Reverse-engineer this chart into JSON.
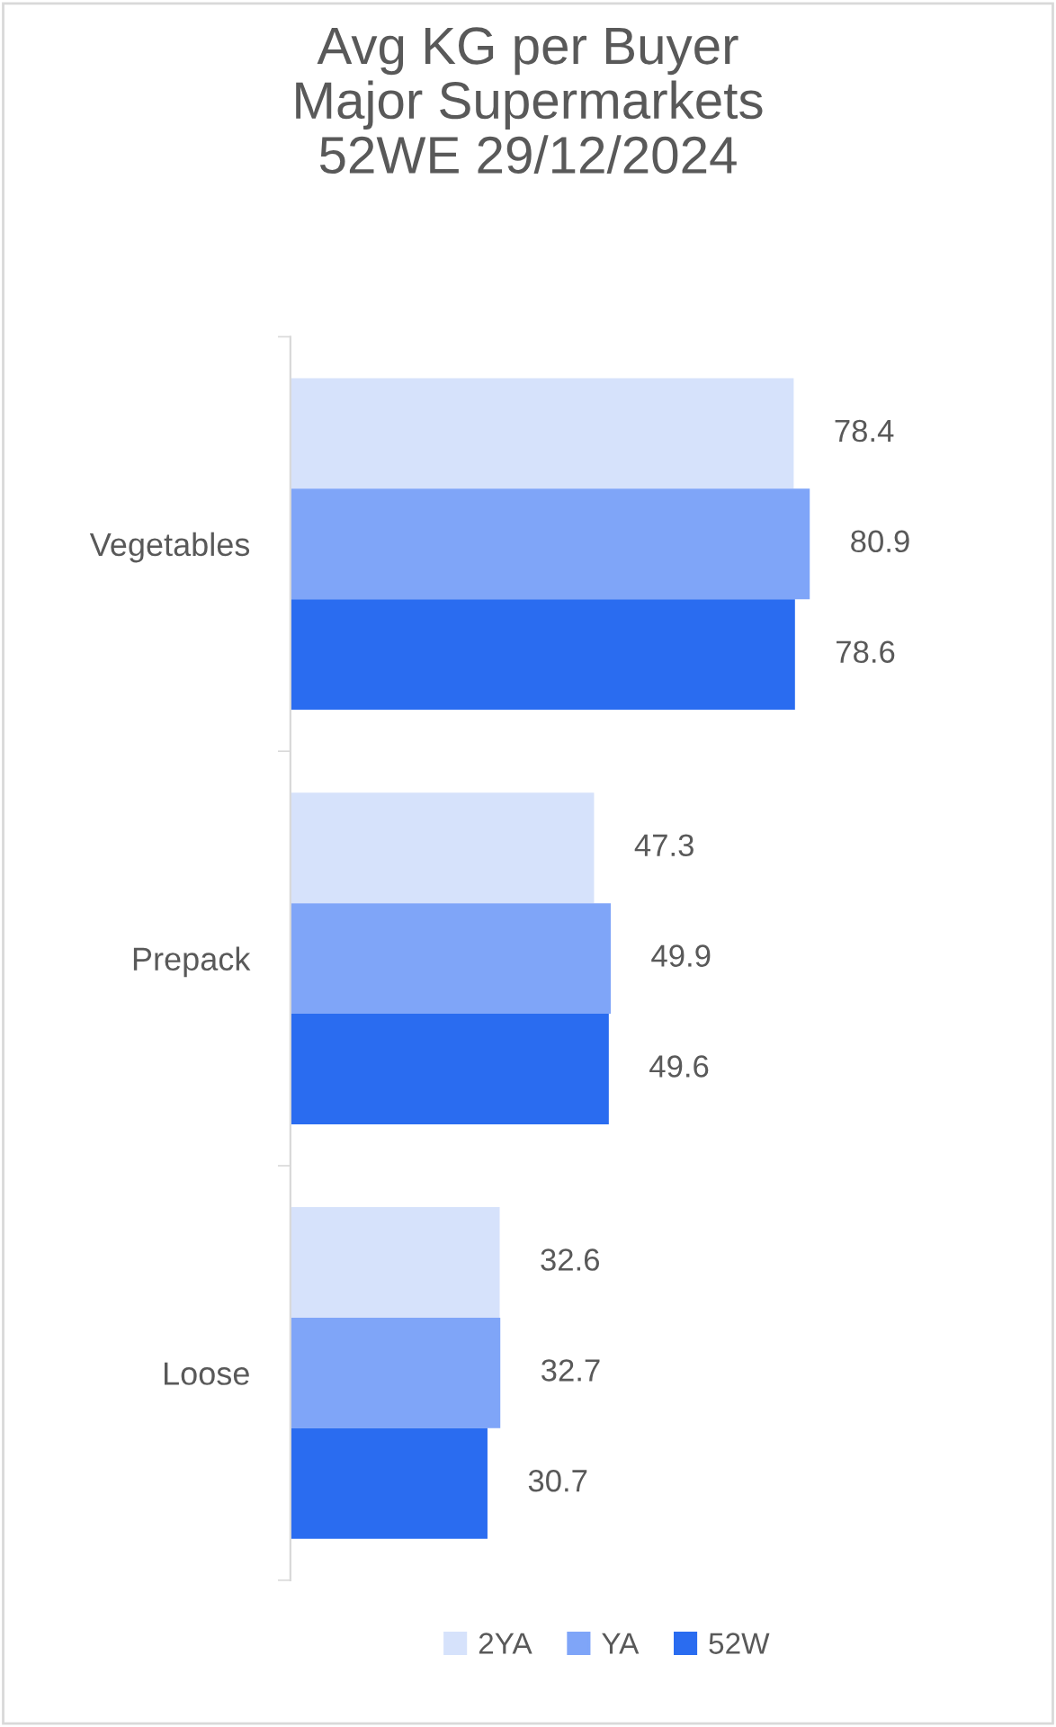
{
  "chart_data": {
    "type": "bar",
    "orientation": "horizontal",
    "title": "Avg KG per Buyer\nMajor Supermarkets\n52WE 29/12/2024",
    "categories": [
      "Vegetables",
      "Prepack",
      "Loose"
    ],
    "series": [
      {
        "name": "2YA",
        "color": "#d6e2fb",
        "values": [
          78.4,
          47.3,
          32.6
        ]
      },
      {
        "name": "YA",
        "color": "#7fa5f8",
        "values": [
          80.9,
          49.9,
          32.7
        ]
      },
      {
        "name": "52W",
        "color": "#2a6cf0",
        "values": [
          78.6,
          49.6,
          30.7
        ]
      }
    ],
    "data_labels": true,
    "legend": "bottom",
    "grid": false
  }
}
